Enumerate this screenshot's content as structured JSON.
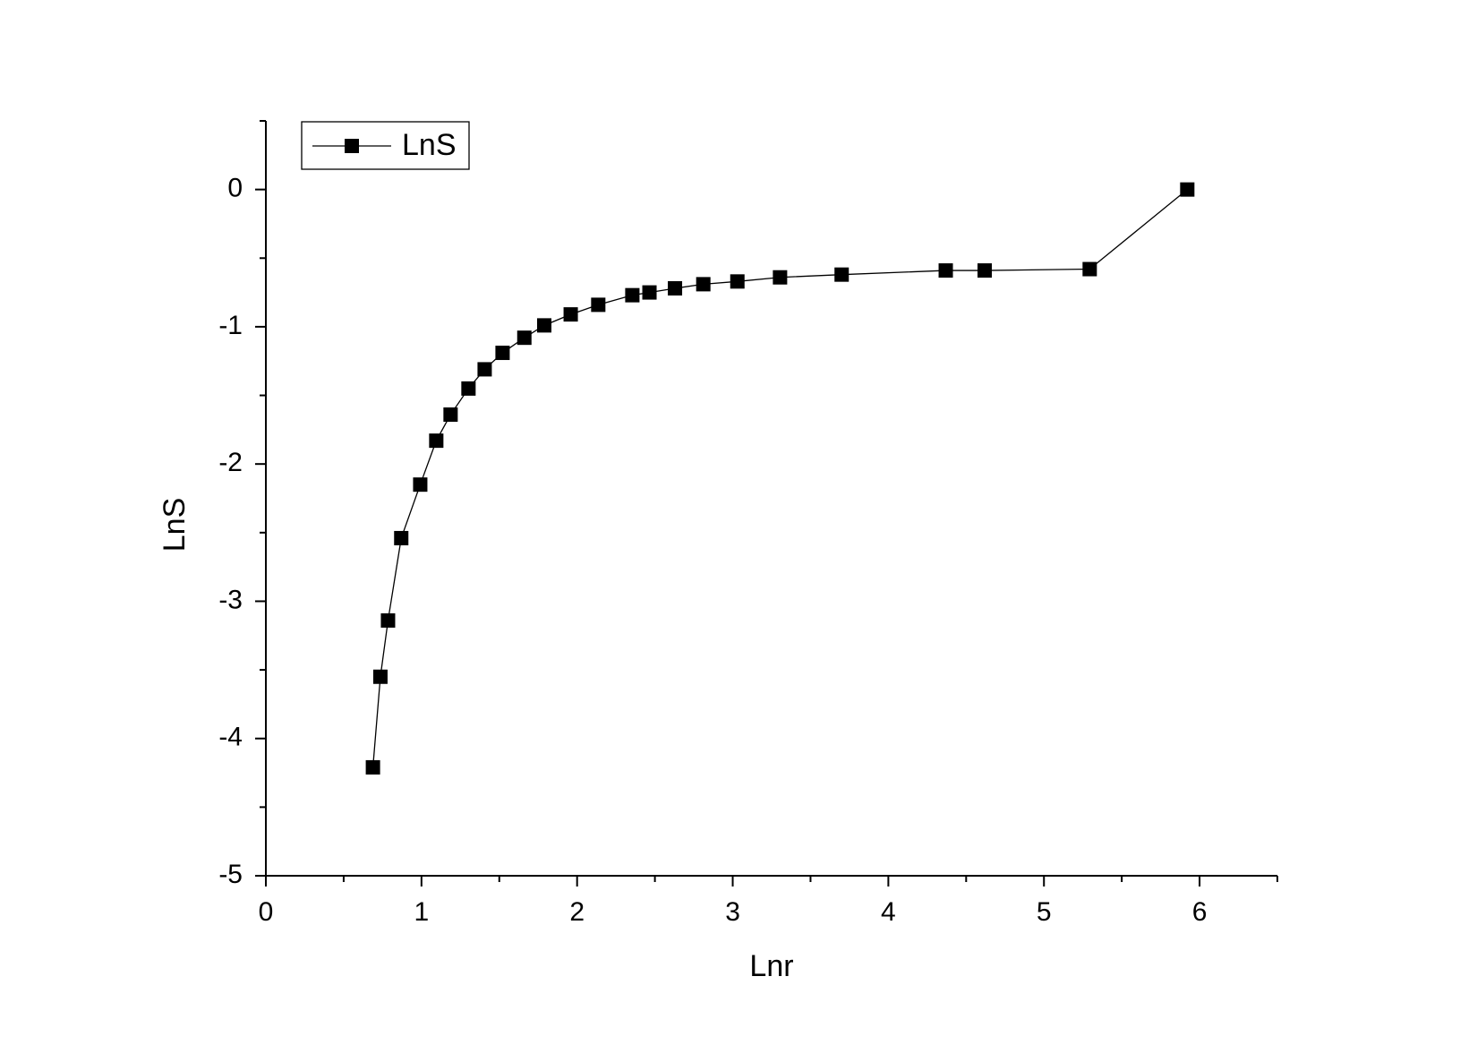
{
  "chart_data": {
    "type": "line",
    "x_label": "Lnr",
    "y_label": "LnS",
    "x": [
      0.688,
      0.736,
      0.785,
      0.87,
      0.992,
      1.095,
      1.187,
      1.302,
      1.406,
      1.521,
      1.661,
      1.789,
      1.959,
      2.136,
      2.355,
      2.465,
      2.629,
      2.811,
      3.03,
      3.304,
      3.7,
      4.369,
      4.619,
      5.294,
      5.921
    ],
    "series": [
      {
        "name": "LnS",
        "color": "#000000",
        "values": [
          -4.21,
          -3.55,
          -3.14,
          -2.54,
          -2.15,
          -1.83,
          -1.64,
          -1.45,
          -1.31,
          -1.19,
          -1.08,
          -0.99,
          -0.91,
          -0.84,
          -0.77,
          -0.75,
          -0.72,
          -0.69,
          -0.67,
          -0.64,
          -0.62,
          -0.59,
          -0.59,
          -0.58,
          0
        ]
      }
    ],
    "xlim": [
      0,
      6.5
    ],
    "ylim": [
      -5,
      0.5
    ],
    "xticks": [
      0,
      1,
      2,
      3,
      4,
      5,
      6
    ],
    "yticks": [
      -5,
      -4,
      -3,
      -2,
      -1,
      0
    ],
    "xticks_minor": [
      0.5,
      1.5,
      2.5,
      3.5,
      4.5,
      5.5,
      6.5
    ],
    "yticks_minor": [
      -4.5,
      -3.5,
      -2.5,
      -1.5,
      -0.5,
      0.5
    ],
    "legend": "upper-left"
  }
}
